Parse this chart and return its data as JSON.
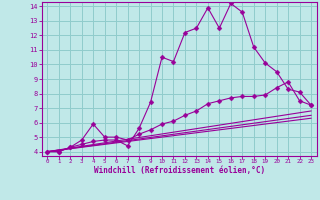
{
  "xlabel": "Windchill (Refroidissement éolien,°C)",
  "bg_color": "#c0e8e8",
  "grid_color": "#90cccc",
  "line_color": "#990099",
  "xlim": [
    -0.5,
    23.5
  ],
  "ylim": [
    3.7,
    14.3
  ],
  "xticks": [
    0,
    1,
    2,
    3,
    4,
    5,
    6,
    7,
    8,
    9,
    10,
    11,
    12,
    13,
    14,
    15,
    16,
    17,
    18,
    19,
    20,
    21,
    22,
    23
  ],
  "yticks": [
    4,
    5,
    6,
    7,
    8,
    9,
    10,
    11,
    12,
    13,
    14
  ],
  "line1_x": [
    0,
    1,
    2,
    3,
    4,
    5,
    6,
    7,
    8,
    9,
    10,
    11,
    12,
    13,
    14,
    15,
    16,
    17,
    18,
    19,
    20,
    21,
    22,
    23
  ],
  "line1_y": [
    4.0,
    4.0,
    4.3,
    4.5,
    4.7,
    4.8,
    4.8,
    4.4,
    5.6,
    7.4,
    10.5,
    10.2,
    12.2,
    12.5,
    13.9,
    12.5,
    14.2,
    13.6,
    11.2,
    10.1,
    9.5,
    8.3,
    8.1,
    7.2
  ],
  "line2_x": [
    0,
    1,
    2,
    3,
    4,
    5,
    6,
    7,
    8,
    9,
    10,
    11,
    12,
    13,
    14,
    15,
    16,
    17,
    18,
    19,
    20,
    21,
    22,
    23
  ],
  "line2_y": [
    4.0,
    4.0,
    4.3,
    4.8,
    5.9,
    5.0,
    5.0,
    4.8,
    5.2,
    5.5,
    5.9,
    6.1,
    6.5,
    6.8,
    7.3,
    7.5,
    7.7,
    7.8,
    7.8,
    7.9,
    8.4,
    8.8,
    7.5,
    7.2
  ],
  "line3_x": [
    0,
    23
  ],
  "line3_y": [
    4.0,
    6.8
  ],
  "line4_x": [
    0,
    23
  ],
  "line4_y": [
    4.0,
    6.5
  ],
  "line5_x": [
    0,
    23
  ],
  "line5_y": [
    4.0,
    6.3
  ]
}
